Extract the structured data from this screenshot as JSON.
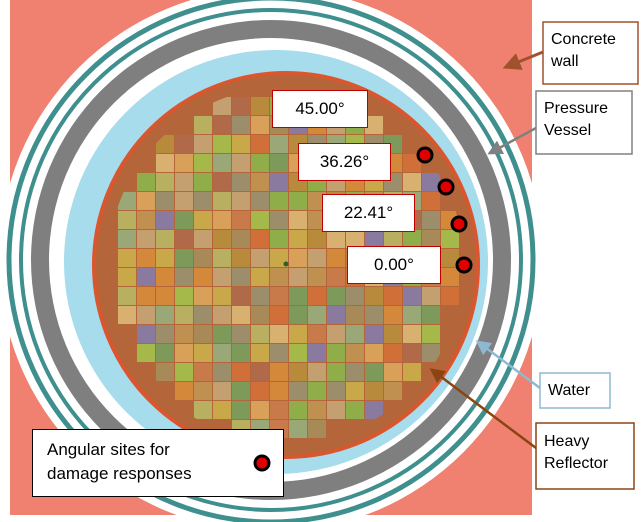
{
  "angle_labels": [
    "45.00°",
    "36.26°",
    "22.41°",
    "0.00°"
  ],
  "callouts": {
    "concrete": [
      "Concrete",
      "wall"
    ],
    "vessel": [
      "Pressure",
      "Vessel"
    ],
    "water": "Water",
    "reflector": [
      "Heavy",
      "Reflector"
    ]
  },
  "legend": {
    "line1": "Angular sites for",
    "line2": "damage responses"
  },
  "colors": {
    "concrete": "#f08070",
    "vessel_ring": "#7f7f7f",
    "water": "#a6dcec",
    "reflector": "#b5653a",
    "reflector_rim": "#d9562e",
    "site_marker": "#e00000",
    "angle_box_border": "#c00000",
    "concrete_callout": "#a0522d",
    "vessel_callout": "#808080",
    "water_callout": "#8fb9d1",
    "reflector_callout": "#8b4513"
  }
}
